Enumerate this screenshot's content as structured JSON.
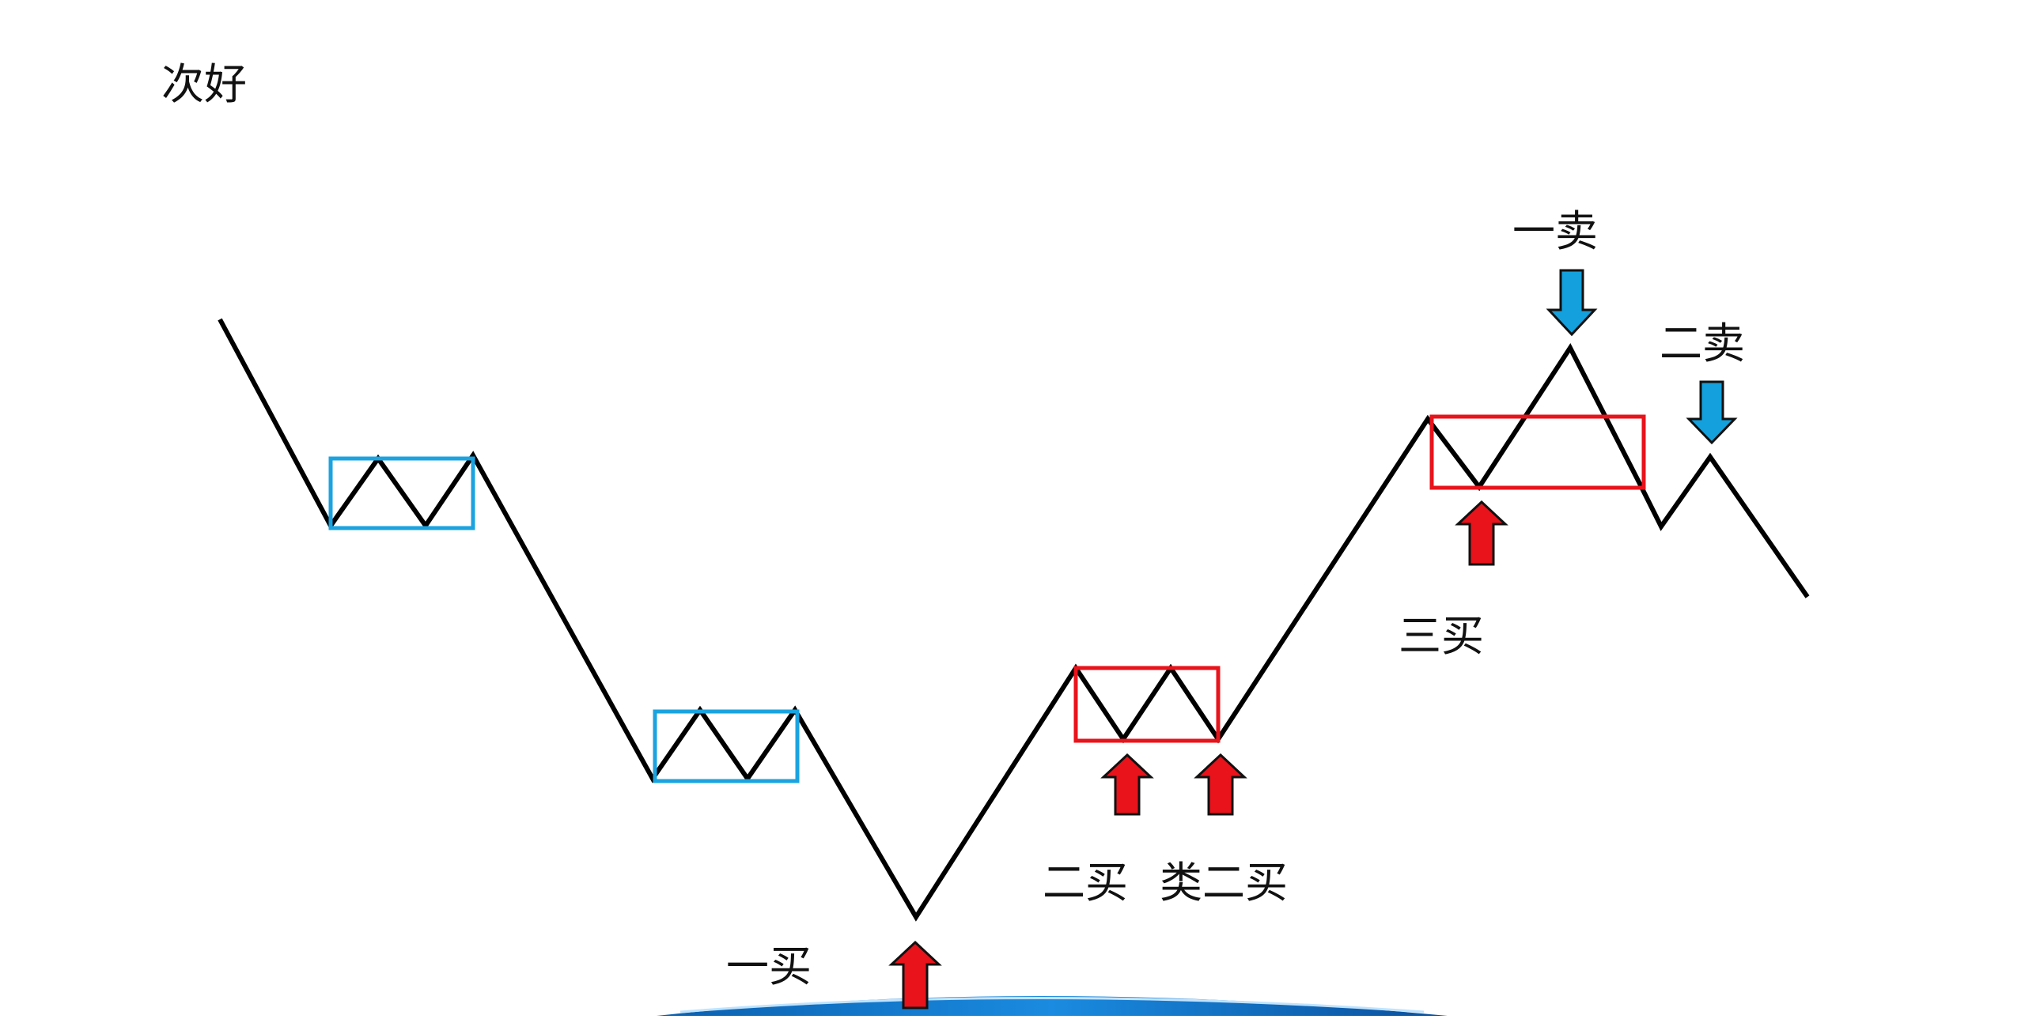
{
  "title": "次好",
  "labels": {
    "buy1": "一买",
    "buy2": "二买",
    "buy2_similar": "类二买",
    "buy3": "三买",
    "sell1": "一卖",
    "sell2": "二卖"
  },
  "colors": {
    "price_line": "#000000",
    "downtrend_box": "#1ba3e0",
    "uptrend_box": "#e8131b",
    "buy_arrow": "#e8131b",
    "sell_arrow": "#14a0dc",
    "wave": "#1677c8"
  },
  "icons": {
    "buy_arrow": "up-arrow-icon",
    "sell_arrow": "down-arrow-icon"
  }
}
